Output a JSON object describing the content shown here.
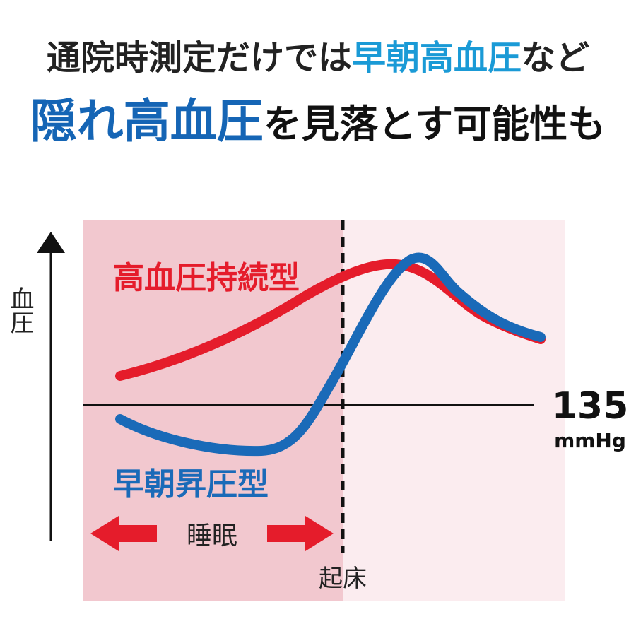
{
  "heading": {
    "line1": [
      "通院時測定だけでは",
      "早朝高血圧",
      "など"
    ],
    "line2": [
      "隠れ高血圧",
      "を見落とす可能性も"
    ]
  },
  "axis_label": "血圧",
  "curves": {
    "sustained": "高血圧持続型",
    "morning": "早朝昇圧型"
  },
  "sleep_label": "睡眠",
  "wake_label": "起床",
  "threshold": {
    "value": "135",
    "unit": "mmHg"
  }
}
